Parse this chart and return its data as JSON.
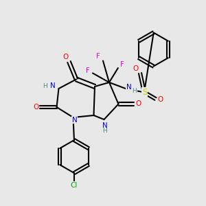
{
  "background_color": "#e8e8e8",
  "fig_width": 3.0,
  "fig_height": 3.0,
  "dpi": 100,
  "bond_color": "#000000",
  "bond_width": 1.5,
  "atom_colors": {
    "N": "#0000cd",
    "O": "#ff0000",
    "F": "#ee00ee",
    "S": "#cccc00",
    "Cl": "#00aa00",
    "H": "#448888",
    "C": "#000000"
  }
}
